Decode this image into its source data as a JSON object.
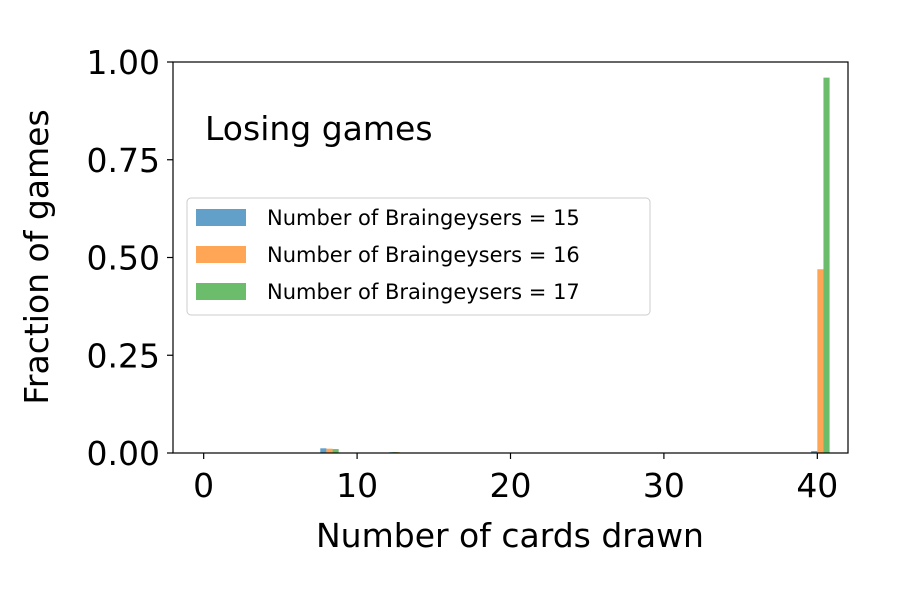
{
  "chart_data": {
    "type": "bar",
    "annotation": "Losing games",
    "xlabel": "Number of cards drawn",
    "ylabel": "Fraction of games",
    "xlim": [
      -2,
      42
    ],
    "ylim": [
      0,
      1
    ],
    "xticks": [
      0,
      10,
      20,
      30,
      40
    ],
    "yticks": [
      0,
      0.25,
      0.5,
      0.75,
      1
    ],
    "xtick_labels": [
      "0",
      "10",
      "20",
      "30",
      "40"
    ],
    "ytick_labels": [
      "0.00",
      "0.25",
      "0.50",
      "0.75",
      "1.00"
    ],
    "bar_width": 0.4,
    "legend_position": "center-left",
    "grid": false,
    "series": [
      {
        "name": "Number of Braingeysers = 15",
        "color": "#1f77b4",
        "opacity": 0.7,
        "points": [
          {
            "x": 7.8,
            "y": 0.012
          },
          {
            "x": 12.3,
            "y": 0.002
          },
          {
            "x": 39.8,
            "y": 0.005
          }
        ]
      },
      {
        "name": "Number of Braingeysers = 16",
        "color": "#ff7f0e",
        "opacity": 0.7,
        "points": [
          {
            "x": 8.2,
            "y": 0.011
          },
          {
            "x": 12.6,
            "y": 0.002
          },
          {
            "x": 40.2,
            "y": 0.47
          }
        ]
      },
      {
        "name": "Number of Braingeysers = 17",
        "color": "#2ca02c",
        "opacity": 0.7,
        "points": [
          {
            "x": 8.6,
            "y": 0.01
          },
          {
            "x": 12.5,
            "y": 0.002
          },
          {
            "x": 40.6,
            "y": 0.96
          }
        ]
      }
    ]
  }
}
